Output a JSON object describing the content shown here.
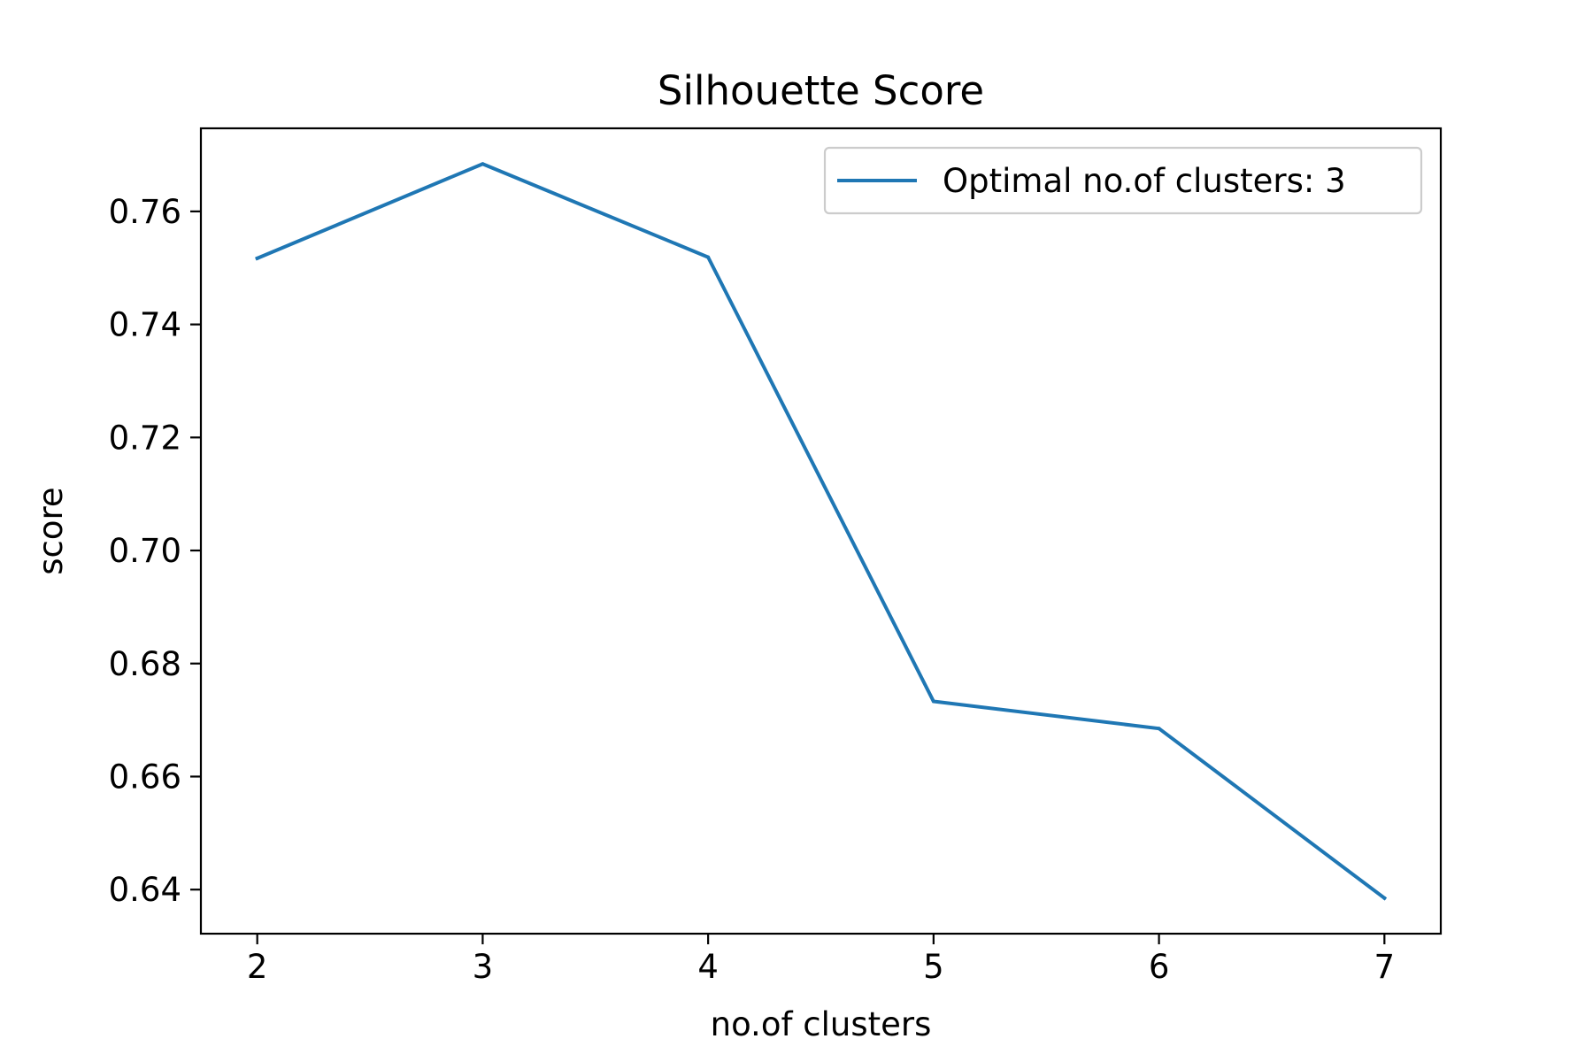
{
  "chart_data": {
    "type": "line",
    "title": "Silhouette Score",
    "xlabel": "no.of clusters",
    "ylabel": "score",
    "x": [
      2,
      3,
      4,
      5,
      6,
      7
    ],
    "series": [
      {
        "name": "Optimal no.of clusters: 3",
        "color": "#1f77b4",
        "values": [
          0.7517,
          0.7684,
          0.7519,
          0.6733,
          0.6685,
          0.6385
        ]
      }
    ],
    "xticks": [
      "2",
      "3",
      "4",
      "5",
      "6",
      "7"
    ],
    "yticks": [
      "0.64",
      "0.66",
      "0.68",
      "0.70",
      "0.72",
      "0.74",
      "0.76"
    ],
    "xlim": [
      1.75,
      7.25
    ],
    "ylim": [
      0.6322,
      0.7747
    ],
    "grid": false,
    "legend_position": "top-right"
  }
}
